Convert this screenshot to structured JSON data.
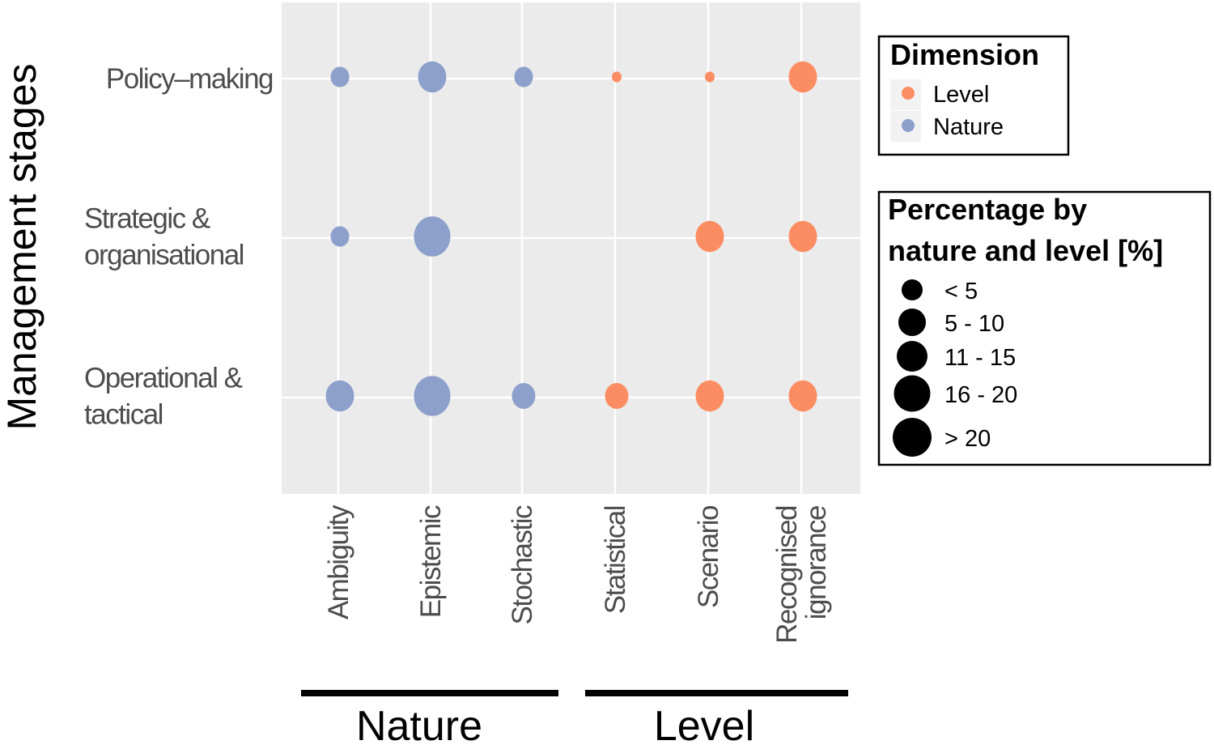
{
  "chart_data": {
    "type": "scatter",
    "subtype": "bubble",
    "ylabel": "Management stages",
    "x_categories": [
      "Ambiguity",
      "Epistemic",
      "Stochastic",
      "Statistical",
      "Scenario",
      "Recognised ignorance"
    ],
    "x_groups": [
      {
        "label": "Nature",
        "categories": [
          "Ambiguity",
          "Epistemic",
          "Stochastic"
        ]
      },
      {
        "label": "Level",
        "categories": [
          "Statistical",
          "Scenario",
          "Recognised ignorance"
        ]
      }
    ],
    "y_categories": [
      "Policy–making",
      "Strategic & organisational",
      "Operational & tactical"
    ],
    "grid": true,
    "colors": {
      "Level": "#fc8d62",
      "Nature": "#8da0cb",
      "panel": "#ebebeb"
    },
    "color_legend": {
      "title": "Dimension",
      "entries": [
        "Level",
        "Nature"
      ],
      "placement": "right"
    },
    "size_legend": {
      "title_line1": "Percentage by",
      "title_line2": "nature and level [%]",
      "entries": [
        "< 5",
        "5 - 10",
        "11 - 15",
        "16 -  20",
        "> 20"
      ],
      "placement": "right"
    },
    "points": [
      {
        "stage": "Policy–making",
        "category": "Ambiguity",
        "dimension": "Nature",
        "percentage": "5 - 10"
      },
      {
        "stage": "Policy–making",
        "category": "Epistemic",
        "dimension": "Nature",
        "percentage": "16 -  20"
      },
      {
        "stage": "Policy–making",
        "category": "Stochastic",
        "dimension": "Nature",
        "percentage": "5 - 10"
      },
      {
        "stage": "Policy–making",
        "category": "Statistical",
        "dimension": "Level",
        "percentage": "< 5"
      },
      {
        "stage": "Policy–making",
        "category": "Scenario",
        "dimension": "Level",
        "percentage": "< 5"
      },
      {
        "stage": "Policy–making",
        "category": "Recognised ignorance",
        "dimension": "Level",
        "percentage": "16 -  20"
      },
      {
        "stage": "Strategic & organisational",
        "category": "Ambiguity",
        "dimension": "Nature",
        "percentage": "5 - 10"
      },
      {
        "stage": "Strategic & organisational",
        "category": "Epistemic",
        "dimension": "Nature",
        "percentage": "> 20"
      },
      {
        "stage": "Strategic & organisational",
        "category": "Scenario",
        "dimension": "Level",
        "percentage": "16 -  20"
      },
      {
        "stage": "Strategic & organisational",
        "category": "Recognised ignorance",
        "dimension": "Level",
        "percentage": "16 -  20"
      },
      {
        "stage": "Operational & tactical",
        "category": "Ambiguity",
        "dimension": "Nature",
        "percentage": "16 -  20"
      },
      {
        "stage": "Operational & tactical",
        "category": "Epistemic",
        "dimension": "Nature",
        "percentage": "> 20"
      },
      {
        "stage": "Operational & tactical",
        "category": "Stochastic",
        "dimension": "Nature",
        "percentage": "11 - 15"
      },
      {
        "stage": "Operational & tactical",
        "category": "Statistical",
        "dimension": "Level",
        "percentage": "11 - 15"
      },
      {
        "stage": "Operational & tactical",
        "category": "Scenario",
        "dimension": "Level",
        "percentage": "16 -  20"
      },
      {
        "stage": "Operational & tactical",
        "category": "Recognised ignorance",
        "dimension": "Level",
        "percentage": "16 -  20"
      }
    ]
  },
  "labels": {
    "y_ticks": [
      [
        "Policy–making"
      ],
      [
        "Strategic &",
        "organisational"
      ],
      [
        "Operational &",
        "tactical"
      ]
    ],
    "x_ticks": [
      [
        "Ambiguity"
      ],
      [
        "Epistemic"
      ],
      [
        "Stochastic"
      ],
      [
        "Statistical"
      ],
      [
        "Scenario"
      ],
      [
        "Recognised",
        "ignorance"
      ]
    ]
  }
}
